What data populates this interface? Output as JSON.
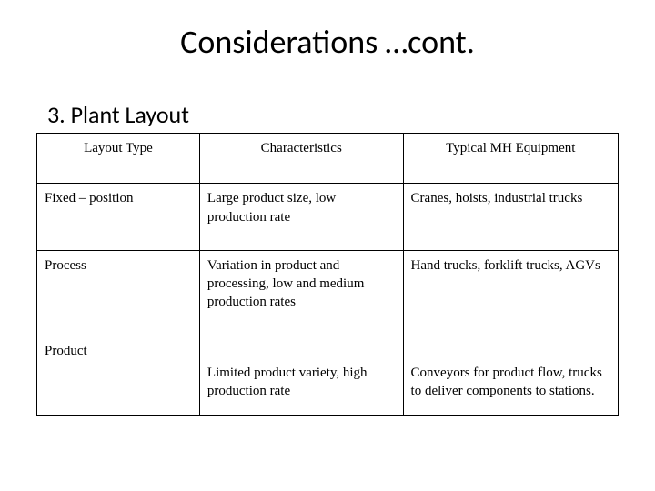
{
  "title": "Considerations …cont.",
  "subtitle": "3. Plant Layout",
  "table": {
    "columns": [
      "Layout Type",
      "Characteristics",
      "Typical MH Equipment"
    ],
    "rows": [
      {
        "type": "Fixed – position",
        "characteristics": "Large product size, low production rate",
        "equipment": "Cranes, hoists, industrial trucks"
      },
      {
        "type": "Process",
        "characteristics": "Variation in product and processing, low and medium production rates",
        "equipment": "Hand trucks, forklift trucks, AGVs"
      },
      {
        "type": "Product",
        "characteristics": "Limited product variety, high production rate",
        "equipment": "Conveyors for product flow, trucks to deliver components to stations."
      }
    ],
    "col_widths_percent": [
      28,
      35,
      37
    ],
    "border_color": "#000000",
    "header_align": "center",
    "body_font": "Georgia",
    "title_font": "Calibri",
    "title_fontsize": 36,
    "subtitle_fontsize": 26,
    "cell_fontsize": 15,
    "background_color": "#ffffff"
  }
}
